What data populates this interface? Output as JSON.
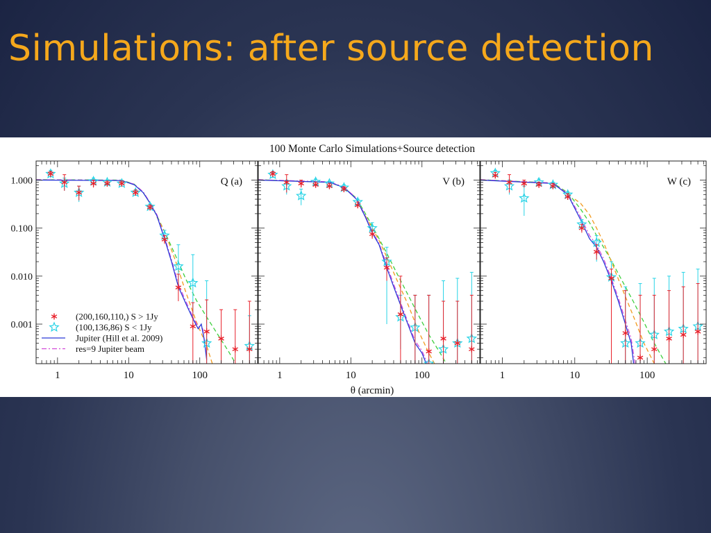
{
  "slide": {
    "title": "Simulations: after source detection"
  },
  "chart_data": {
    "type": "scatter",
    "title": "100 Monte Carlo Simulations+Source detection",
    "xlabel": "θ (arcmin)",
    "ylabel": "",
    "xscale": "log",
    "yscale": "log",
    "xlim": [
      0.5,
      650
    ],
    "ylim": [
      0.00015,
      2.5
    ],
    "x_ticks": [
      {
        "v": 1,
        "label": "1"
      },
      {
        "v": 10,
        "label": "10"
      },
      {
        "v": 100,
        "label": "100"
      }
    ],
    "y_ticks": [
      {
        "v": 1,
        "label": "1.000"
      },
      {
        "v": 0.1,
        "label": "0.100"
      },
      {
        "v": 0.01,
        "label": "0.010"
      },
      {
        "v": 0.001,
        "label": "0.001"
      }
    ],
    "legend": {
      "placement": "bottom-left",
      "entries": [
        {
          "marker": "asterisk",
          "color": "#e8202a",
          "label": "(200,160,110,) S > 1Jy"
        },
        {
          "marker": "star",
          "color": "#26d3e6",
          "label": "(100,136,86) S < 1Jy"
        },
        {
          "marker": "line",
          "color": "#2a39d8",
          "label": "Jupiter (Hill et al. 2009)"
        },
        {
          "marker": "dashdot",
          "color": "#d14bd8",
          "label": "res=9 Jupiter beam"
        }
      ]
    },
    "colors": {
      "bright": "#e8202a",
      "faint": "#26d3e6",
      "jupiter": "#2a39d8",
      "beam": "#d14bd8",
      "green": "#3ecf3e",
      "orange": "#f29a1e"
    },
    "panels": [
      {
        "label": "Q (a)",
        "bright": [
          [
            0.8,
            1.35,
            1.5,
            1.2
          ],
          [
            1.25,
            0.9,
            1.3,
            0.6
          ],
          [
            2,
            0.55,
            0.75,
            0.38
          ],
          [
            3.2,
            0.85,
            1.0,
            0.7
          ],
          [
            5,
            0.85,
            0.95,
            0.75
          ],
          [
            8,
            0.85,
            0.95,
            0.75
          ],
          [
            12.5,
            0.55,
            0.62,
            0.48
          ],
          [
            20,
            0.27,
            0.3,
            0.24
          ],
          [
            32,
            0.058,
            0.07,
            0.047
          ],
          [
            50,
            0.0058,
            0.011,
            0.003
          ],
          [
            80,
            0.0009,
            0.0028,
            0.00015
          ],
          [
            125,
            0.0007,
            0.0032,
            0.00015
          ],
          [
            200,
            0.0005,
            0.002,
            0.00015
          ],
          [
            315,
            0.0003,
            0.002,
            0.00015
          ],
          [
            500,
            0.0003,
            0.003,
            0.00015
          ]
        ],
        "faint": [
          [
            0.8,
            1.35,
            1.6,
            1.1
          ],
          [
            1.25,
            0.85,
            1.1,
            0.6
          ],
          [
            2,
            0.55,
            0.75,
            0.35
          ],
          [
            3.2,
            0.95,
            1.1,
            0.8
          ],
          [
            5,
            0.9,
            1.0,
            0.8
          ],
          [
            8,
            0.85,
            0.95,
            0.75
          ],
          [
            12.5,
            0.55,
            0.62,
            0.48
          ],
          [
            20,
            0.28,
            0.32,
            0.25
          ],
          [
            32,
            0.07,
            0.09,
            0.05
          ],
          [
            50,
            0.016,
            0.045,
            0.005
          ],
          [
            80,
            0.0072,
            0.028,
            0.0015
          ],
          [
            125,
            0.0004,
            0.008,
            0.00015
          ],
          [
            500,
            0.00035,
            0.0015,
            0.00015
          ]
        ],
        "jupiter": [
          [
            0.5,
            1.0
          ],
          [
            8,
            0.98
          ],
          [
            12,
            0.8
          ],
          [
            16,
            0.55
          ],
          [
            20,
            0.33
          ],
          [
            25,
            0.18
          ],
          [
            32,
            0.06
          ],
          [
            40,
            0.02
          ],
          [
            50,
            0.006
          ],
          [
            65,
            0.0025
          ],
          [
            80,
            0.0013
          ],
          [
            95,
            0.0008
          ],
          [
            105,
            0.001
          ],
          [
            115,
            0.0005
          ],
          [
            125,
            0.00018
          ]
        ],
        "beam": [
          [
            0.5,
            1.02
          ],
          [
            8,
            0.99
          ],
          [
            12,
            0.82
          ],
          [
            16,
            0.57
          ],
          [
            20,
            0.34
          ],
          [
            25,
            0.19
          ],
          [
            32,
            0.065
          ],
          [
            40,
            0.022
          ],
          [
            50,
            0.0068
          ],
          [
            65,
            0.0028
          ],
          [
            80,
            0.0014
          ],
          [
            95,
            0.0009
          ],
          [
            110,
            0.0008
          ],
          [
            125,
            0.0002
          ]
        ],
        "green": [
          [
            0.5,
            1.02
          ],
          [
            8,
            1.0
          ],
          [
            12,
            0.82
          ],
          [
            16,
            0.55
          ],
          [
            20,
            0.33
          ],
          [
            25,
            0.18
          ],
          [
            32,
            0.085
          ],
          [
            45,
            0.028
          ],
          [
            64,
            0.0085
          ],
          [
            90,
            0.0031
          ],
          [
            125,
            0.0014
          ],
          [
            180,
            0.0006
          ],
          [
            250,
            0.00028
          ],
          [
            320,
            0.00015
          ]
        ],
        "orange": [
          [
            25,
            0.17
          ],
          [
            32,
            0.085
          ],
          [
            45,
            0.022
          ],
          [
            64,
            0.0045
          ],
          [
            90,
            0.0011
          ],
          [
            125,
            0.00035
          ],
          [
            150,
            0.00015
          ]
        ]
      },
      {
        "label": "V (b)",
        "bright": [
          [
            0.8,
            1.35,
            1.5,
            1.2
          ],
          [
            1.25,
            0.9,
            1.3,
            0.55
          ],
          [
            2,
            0.85,
            1.0,
            0.7
          ],
          [
            3.2,
            0.8,
            0.9,
            0.7
          ],
          [
            5,
            0.75,
            0.85,
            0.65
          ],
          [
            8,
            0.65,
            0.72,
            0.58
          ],
          [
            12.5,
            0.3,
            0.35,
            0.27
          ],
          [
            20,
            0.075,
            0.09,
            0.06
          ],
          [
            32,
            0.015,
            0.024,
            0.008
          ],
          [
            50,
            0.0016,
            0.01,
            0.00015
          ],
          [
            80,
            0.0001,
            0.004,
            0.00015
          ],
          [
            125,
            0.00027,
            0.004,
            0.00015
          ],
          [
            200,
            0.0005,
            0.003,
            0.00015
          ],
          [
            315,
            0.0004,
            0.003,
            0.00015
          ],
          [
            500,
            0.0003,
            0.004,
            0.00015
          ]
        ],
        "faint": [
          [
            0.8,
            1.3,
            1.5,
            1.1
          ],
          [
            1.25,
            0.75,
            1.0,
            0.5
          ],
          [
            2,
            0.47,
            0.65,
            0.3
          ],
          [
            3.2,
            0.92,
            1.05,
            0.8
          ],
          [
            5,
            0.85,
            0.95,
            0.75
          ],
          [
            8,
            0.7,
            0.8,
            0.6
          ],
          [
            12.5,
            0.35,
            0.4,
            0.3
          ],
          [
            20,
            0.1,
            0.13,
            0.08
          ],
          [
            32,
            0.02,
            0.04,
            0.001
          ],
          [
            50,
            0.0014,
            0.004,
            0.0003
          ],
          [
            80,
            0.00085,
            0.004,
            0.00015
          ],
          [
            125,
            0.00015,
            0.004,
            0.00015
          ],
          [
            200,
            0.0003,
            0.008,
            0.00015
          ],
          [
            315,
            0.0004,
            0.009,
            0.00015
          ],
          [
            500,
            0.0005,
            0.012,
            0.00015
          ]
        ],
        "jupiter": [
          [
            0.5,
            1.0
          ],
          [
            5,
            0.9
          ],
          [
            8,
            0.7
          ],
          [
            12,
            0.4
          ],
          [
            16,
            0.17
          ],
          [
            20,
            0.08
          ],
          [
            25,
            0.045
          ],
          [
            32,
            0.015
          ],
          [
            40,
            0.006
          ],
          [
            50,
            0.0025
          ],
          [
            65,
            0.0009
          ],
          [
            80,
            0.0004
          ],
          [
            100,
            0.00025
          ],
          [
            115,
            0.00015
          ]
        ],
        "beam": [
          [
            0.5,
            1.02
          ],
          [
            5,
            0.92
          ],
          [
            8,
            0.72
          ],
          [
            12,
            0.42
          ],
          [
            16,
            0.18
          ],
          [
            20,
            0.085
          ],
          [
            25,
            0.048
          ],
          [
            32,
            0.017
          ],
          [
            40,
            0.0068
          ],
          [
            50,
            0.0028
          ],
          [
            65,
            0.001
          ],
          [
            80,
            0.00045
          ],
          [
            100,
            0.00028
          ],
          [
            120,
            0.00015
          ]
        ],
        "green": [
          [
            0.5,
            1.02
          ],
          [
            5,
            0.9
          ],
          [
            8,
            0.7
          ],
          [
            12,
            0.42
          ],
          [
            16,
            0.2
          ],
          [
            20,
            0.11
          ],
          [
            25,
            0.06
          ],
          [
            32,
            0.03
          ],
          [
            45,
            0.011
          ],
          [
            64,
            0.004
          ],
          [
            90,
            0.0015
          ],
          [
            125,
            0.0006
          ],
          [
            180,
            0.00025
          ],
          [
            220,
            0.00015
          ]
        ],
        "orange": [
          [
            16,
            0.18
          ],
          [
            20,
            0.1
          ],
          [
            25,
            0.055
          ],
          [
            32,
            0.025
          ],
          [
            45,
            0.008
          ],
          [
            64,
            0.0025
          ],
          [
            90,
            0.0007
          ],
          [
            125,
            0.00025
          ],
          [
            150,
            0.00015
          ]
        ]
      },
      {
        "label": "W (c)",
        "bright": [
          [
            0.8,
            1.25,
            1.45,
            1.1
          ],
          [
            1.25,
            0.9,
            1.3,
            0.55
          ],
          [
            2,
            0.85,
            1.0,
            0.7
          ],
          [
            3.2,
            0.8,
            0.9,
            0.7
          ],
          [
            5,
            0.75,
            0.85,
            0.65
          ],
          [
            8,
            0.45,
            0.52,
            0.4
          ],
          [
            12.5,
            0.1,
            0.12,
            0.08
          ],
          [
            20,
            0.032,
            0.045,
            0.022
          ],
          [
            32,
            0.009,
            0.014,
            0.00015
          ],
          [
            50,
            0.00065,
            0.005,
            0.00015
          ],
          [
            80,
            0.0002,
            0.004,
            0.00015
          ],
          [
            125,
            0.0003,
            0.004,
            0.00015
          ],
          [
            200,
            0.0005,
            0.005,
            0.00015
          ],
          [
            315,
            0.0006,
            0.006,
            0.00015
          ],
          [
            500,
            0.0007,
            0.007,
            0.00015
          ]
        ],
        "faint": [
          [
            0.8,
            1.4,
            1.6,
            1.2
          ],
          [
            1.25,
            0.75,
            1.0,
            0.5
          ],
          [
            2,
            0.42,
            0.75,
            0.18
          ],
          [
            3.2,
            0.9,
            1.05,
            0.75
          ],
          [
            5,
            0.8,
            0.9,
            0.7
          ],
          [
            8,
            0.5,
            0.57,
            0.43
          ],
          [
            12.5,
            0.12,
            0.15,
            0.09
          ],
          [
            20,
            0.05,
            0.07,
            0.02
          ],
          [
            32,
            0.0095,
            0.02,
            0.002
          ],
          [
            50,
            0.0004,
            0.006,
            0.00015
          ],
          [
            80,
            0.0004,
            0.007,
            0.00015
          ],
          [
            125,
            0.0006,
            0.009,
            0.00015
          ],
          [
            200,
            0.0007,
            0.01,
            0.00015
          ],
          [
            315,
            0.0008,
            0.012,
            0.00015
          ],
          [
            500,
            0.0009,
            0.014,
            0.00015
          ]
        ],
        "jupiter": [
          [
            0.5,
            1.0
          ],
          [
            5,
            0.85
          ],
          [
            8,
            0.5
          ],
          [
            12,
            0.15
          ],
          [
            16,
            0.06
          ],
          [
            20,
            0.04
          ],
          [
            25,
            0.02
          ],
          [
            32,
            0.008
          ],
          [
            40,
            0.003
          ],
          [
            50,
            0.001
          ],
          [
            60,
            0.0004
          ],
          [
            65,
            0.00015
          ]
        ],
        "beam": [
          [
            0.5,
            1.02
          ],
          [
            5,
            0.87
          ],
          [
            8,
            0.52
          ],
          [
            12,
            0.17
          ],
          [
            16,
            0.07
          ],
          [
            20,
            0.045
          ],
          [
            25,
            0.023
          ],
          [
            32,
            0.009
          ],
          [
            40,
            0.0035
          ],
          [
            50,
            0.0012
          ],
          [
            60,
            0.0005
          ],
          [
            68,
            0.00015
          ]
        ],
        "green": [
          [
            0.5,
            1.02
          ],
          [
            5,
            0.87
          ],
          [
            8,
            0.55
          ],
          [
            12,
            0.25
          ],
          [
            16,
            0.13
          ],
          [
            20,
            0.07
          ],
          [
            25,
            0.04
          ],
          [
            32,
            0.021
          ],
          [
            45,
            0.008
          ],
          [
            64,
            0.003
          ],
          [
            90,
            0.0011
          ],
          [
            125,
            0.0004
          ],
          [
            180,
            0.00015
          ]
        ],
        "orange": [
          [
            10,
            0.4
          ],
          [
            12,
            0.33
          ],
          [
            16,
            0.19
          ],
          [
            20,
            0.1
          ],
          [
            25,
            0.05
          ],
          [
            32,
            0.02
          ],
          [
            45,
            0.0055
          ],
          [
            64,
            0.0015
          ],
          [
            90,
            0.0004
          ],
          [
            125,
            0.00015
          ]
        ]
      }
    ]
  }
}
